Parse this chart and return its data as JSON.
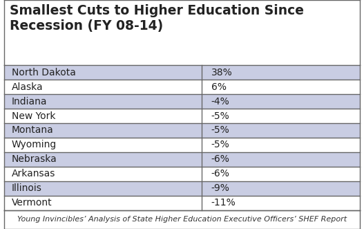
{
  "title": "Smallest Cuts to Higher Education Since\nRecession (FY 08-14)",
  "footer": "Young Invincibles’ Analysis of State Higher Education Executive Officers’ SHEF Report",
  "rows": [
    [
      "North Dakota",
      "38%"
    ],
    [
      "Alaska",
      "6%"
    ],
    [
      "Indiana",
      "-4%"
    ],
    [
      "New York",
      "-5%"
    ],
    [
      "Montana",
      "-5%"
    ],
    [
      "Wyoming",
      "-5%"
    ],
    [
      "Nebraska",
      "-6%"
    ],
    [
      "Arkansas",
      "-6%"
    ],
    [
      "Illinois",
      "-9%"
    ],
    [
      "Vermont",
      "-11%"
    ]
  ],
  "shaded_rows": [
    0,
    2,
    4,
    6,
    8
  ],
  "row_color_shaded": "#c9cde3",
  "row_color_white": "#ffffff",
  "title_bg": "#ffffff",
  "border_color": "#666666",
  "text_color": "#222222",
  "footer_color": "#333333",
  "title_fontsize": 13.5,
  "cell_fontsize": 10,
  "footer_fontsize": 8,
  "col_split": 0.555
}
